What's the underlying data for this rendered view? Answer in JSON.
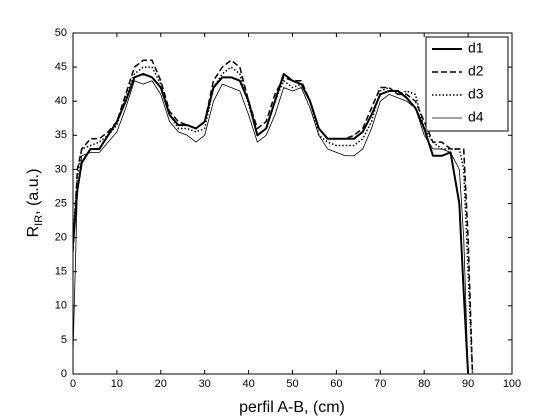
{
  "chart_data": {
    "type": "line",
    "xlabel": "perfil A-B, (cm)",
    "ylabel": {
      "main": "R",
      "sub": "IR",
      "rest": ", (a.u.)"
    },
    "x": [
      0,
      1,
      2,
      4,
      6,
      8,
      10,
      12,
      14,
      16,
      18,
      20,
      22,
      24,
      26,
      28,
      30,
      32,
      34,
      36,
      38,
      40,
      42,
      44,
      46,
      48,
      50,
      52,
      54,
      56,
      58,
      60,
      62,
      64,
      66,
      68,
      70,
      72,
      74,
      76,
      78,
      80,
      82,
      84,
      86,
      88,
      89,
      90,
      91
    ],
    "series": [
      {
        "name": "d1",
        "color": "#000000",
        "style": "solid",
        "width": 2,
        "values": [
          19,
          27,
          31,
          33,
          33,
          35,
          37,
          40,
          43.5,
          44,
          43.5,
          42,
          38,
          36.5,
          36.5,
          36,
          37,
          42,
          43.5,
          43.5,
          43,
          40,
          35,
          36,
          40,
          44,
          43,
          42.5,
          40,
          36,
          34.5,
          34.5,
          34.5,
          34.5,
          35.5,
          38,
          41,
          41.5,
          41.5,
          40.5,
          39,
          36,
          32,
          32,
          32.5,
          25,
          12,
          0,
          null
        ]
      },
      {
        "name": "d2",
        "color": "#000000",
        "style": "dashed",
        "width": 1.5,
        "values": [
          18,
          30,
          33,
          34.5,
          34.5,
          35.5,
          37,
          41,
          45,
          46,
          46,
          43,
          38.5,
          37,
          36.5,
          36,
          37,
          43,
          45,
          46,
          45,
          40,
          36,
          37,
          41,
          43.5,
          43,
          43,
          40,
          36,
          34.5,
          34.5,
          34.5,
          35,
          36,
          39,
          42,
          42,
          41,
          41,
          40,
          37,
          34,
          34,
          33,
          33,
          33,
          20,
          0
        ]
      },
      {
        "name": "d3",
        "color": "#000000",
        "style": "dotted",
        "width": 1.5,
        "values": [
          20,
          29,
          33,
          33.5,
          34,
          35,
          36.5,
          40.5,
          44,
          45,
          45,
          42.5,
          38,
          36,
          36,
          35.5,
          36,
          42,
          44,
          45,
          44,
          39.5,
          35,
          36,
          40,
          43,
          42,
          42.5,
          40,
          35,
          34,
          33.5,
          33.5,
          33.5,
          34.5,
          37,
          41.5,
          42,
          41,
          41.5,
          41,
          36,
          34,
          33,
          33,
          33,
          30,
          15,
          0
        ]
      },
      {
        "name": "d4",
        "color": "#000000",
        "style": "solid",
        "width": 0.8,
        "values": [
          3,
          27,
          32,
          32.5,
          32.5,
          34,
          35.5,
          39,
          43,
          42.5,
          43,
          41,
          37,
          35.5,
          35,
          34,
          35,
          40,
          42.5,
          42,
          41.5,
          38,
          34,
          35,
          38,
          42,
          41.5,
          42,
          39,
          35,
          33,
          32.5,
          32,
          32,
          33,
          36,
          40,
          41,
          40.5,
          40,
          39,
          35,
          33,
          33,
          32.5,
          30,
          20,
          0,
          null
        ]
      }
    ],
    "xlim": [
      0,
      100
    ],
    "xticks": [
      0,
      10,
      20,
      30,
      40,
      50,
      60,
      70,
      80,
      90,
      100
    ],
    "ylim": [
      0,
      50
    ],
    "yticks": [
      0,
      5,
      10,
      15,
      20,
      25,
      30,
      35,
      40,
      45,
      50
    ],
    "grid": false,
    "legend": "top-right"
  }
}
